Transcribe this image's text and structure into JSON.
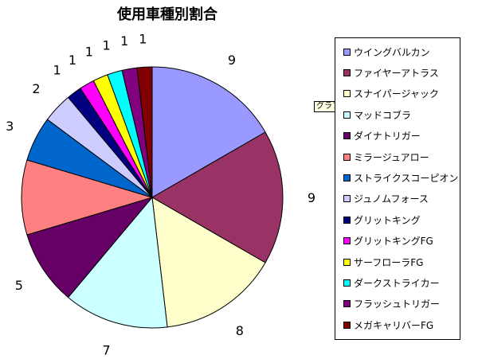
{
  "chart_data": {
    "type": "pie",
    "title": "使用車種別割合",
    "categories": [
      "ウイングバルカン",
      "ファイヤーアトラス",
      "スナイパージャック",
      "マッドコブラ",
      "ダイナトリガー",
      "ミラージュアロー",
      "ストライクスコーピオン",
      "ジュノムフォース",
      "グリットキング",
      "グリットキングFG",
      "サーフローラFG",
      "ダークストライカー",
      "フラッシュトリガー",
      "メガキャリバーFG"
    ],
    "values": [
      9,
      9,
      8,
      7,
      5,
      5,
      3,
      2,
      1,
      1,
      1,
      1,
      1,
      1
    ],
    "colors": [
      "#9999ff",
      "#993366",
      "#ffffcc",
      "#ccffff",
      "#660066",
      "#ff8080",
      "#0066cc",
      "#ccccff",
      "#000080",
      "#ff00ff",
      "#ffff00",
      "#00ffff",
      "#800080",
      "#800000"
    ],
    "legend_position": "right"
  },
  "tooltip": "グラフ エリア"
}
